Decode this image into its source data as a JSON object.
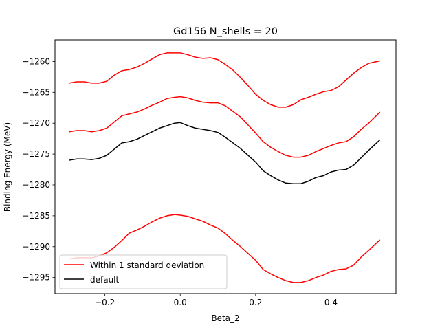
{
  "chart_data": {
    "type": "line",
    "title": "Gd156 N_shells = 20",
    "xlabel": "Beta_2",
    "ylabel": "Binding Energy (MeV)",
    "xlim": [
      -0.3325,
      0.5725
    ],
    "ylim": [
      -1297.6,
      -1256.5
    ],
    "xticks": [
      -0.2,
      0.0,
      0.2,
      0.4
    ],
    "xtick_labels": [
      "−0.2",
      "0.0",
      "0.2",
      "0.4"
    ],
    "yticks": [
      -1260,
      -1265,
      -1270,
      -1275,
      -1280,
      -1285,
      -1290,
      -1295
    ],
    "ytick_labels": [
      "−1260",
      "−1265",
      "−1270",
      "−1275",
      "−1280",
      "−1285",
      "−1290",
      "−1295"
    ],
    "grid": false,
    "legend_position": "lower-left",
    "legend": [
      {
        "label": "Within 1 standard deviation",
        "color": "#ff0000"
      },
      {
        "label": "default",
        "color": "#000000"
      }
    ],
    "x": [
      -0.295,
      -0.275,
      -0.255,
      -0.235,
      -0.215,
      -0.195,
      -0.175,
      -0.155,
      -0.135,
      -0.115,
      -0.095,
      -0.075,
      -0.055,
      -0.035,
      -0.015,
      0.0,
      0.02,
      0.04,
      0.06,
      0.08,
      0.1,
      0.12,
      0.14,
      0.16,
      0.18,
      0.2,
      0.22,
      0.24,
      0.26,
      0.28,
      0.3,
      0.32,
      0.34,
      0.36,
      0.38,
      0.4,
      0.42,
      0.44,
      0.46,
      0.48,
      0.5,
      0.53
    ],
    "series": [
      {
        "color": "#ff0000",
        "values": [
          -1263.5,
          -1263.3,
          -1263.3,
          -1263.5,
          -1263.5,
          -1263.2,
          -1262.2,
          -1261.5,
          -1261.3,
          -1260.9,
          -1260.3,
          -1259.6,
          -1258.9,
          -1258.6,
          -1258.6,
          -1258.6,
          -1258.9,
          -1259.3,
          -1259.5,
          -1259.4,
          -1259.7,
          -1260.5,
          -1261.4,
          -1262.6,
          -1263.9,
          -1265.3,
          -1266.3,
          -1267.0,
          -1267.4,
          -1267.4,
          -1267.0,
          -1266.2,
          -1265.8,
          -1265.3,
          -1264.9,
          -1264.7,
          -1264.1,
          -1263.0,
          -1261.9,
          -1261.0,
          -1260.3,
          -1259.9
        ]
      },
      {
        "color": "#ff0000",
        "values": [
          -1271.4,
          -1271.2,
          -1271.2,
          -1271.4,
          -1271.2,
          -1270.8,
          -1269.8,
          -1268.8,
          -1268.5,
          -1268.2,
          -1267.7,
          -1267.1,
          -1266.6,
          -1266.0,
          -1265.8,
          -1265.7,
          -1265.9,
          -1266.3,
          -1266.6,
          -1266.7,
          -1266.7,
          -1267.2,
          -1268.1,
          -1269.0,
          -1270.3,
          -1271.6,
          -1273.0,
          -1273.9,
          -1274.6,
          -1275.2,
          -1275.5,
          -1275.5,
          -1275.2,
          -1274.6,
          -1274.1,
          -1273.6,
          -1273.2,
          -1273.0,
          -1272.2,
          -1271.0,
          -1270.0,
          -1268.2
        ]
      },
      {
        "color": "#000000",
        "values": [
          -1276.0,
          -1275.8,
          -1275.8,
          -1275.9,
          -1275.7,
          -1275.2,
          -1274.2,
          -1273.2,
          -1273.0,
          -1272.6,
          -1272.0,
          -1271.4,
          -1270.8,
          -1270.4,
          -1270.0,
          -1269.9,
          -1270.4,
          -1270.8,
          -1271.0,
          -1271.2,
          -1271.5,
          -1272.3,
          -1273.2,
          -1274.1,
          -1275.2,
          -1276.3,
          -1277.7,
          -1278.5,
          -1279.2,
          -1279.7,
          -1279.8,
          -1279.8,
          -1279.4,
          -1278.8,
          -1278.5,
          -1277.9,
          -1277.6,
          -1277.5,
          -1276.8,
          -1275.6,
          -1274.4,
          -1272.7
        ]
      },
      {
        "color": "#ff0000",
        "values": [
          -1292.0,
          -1291.8,
          -1291.8,
          -1291.8,
          -1291.5,
          -1291.0,
          -1290.1,
          -1289.0,
          -1287.8,
          -1287.3,
          -1286.7,
          -1286.0,
          -1285.4,
          -1285.0,
          -1284.8,
          -1284.9,
          -1285.1,
          -1285.5,
          -1285.9,
          -1286.5,
          -1287.0,
          -1287.9,
          -1289.0,
          -1290.0,
          -1291.1,
          -1292.2,
          -1293.7,
          -1294.4,
          -1295.0,
          -1295.5,
          -1295.8,
          -1295.8,
          -1295.5,
          -1295.0,
          -1294.6,
          -1294.0,
          -1293.7,
          -1293.6,
          -1293.0,
          -1291.7,
          -1290.6,
          -1288.9
        ]
      }
    ]
  }
}
